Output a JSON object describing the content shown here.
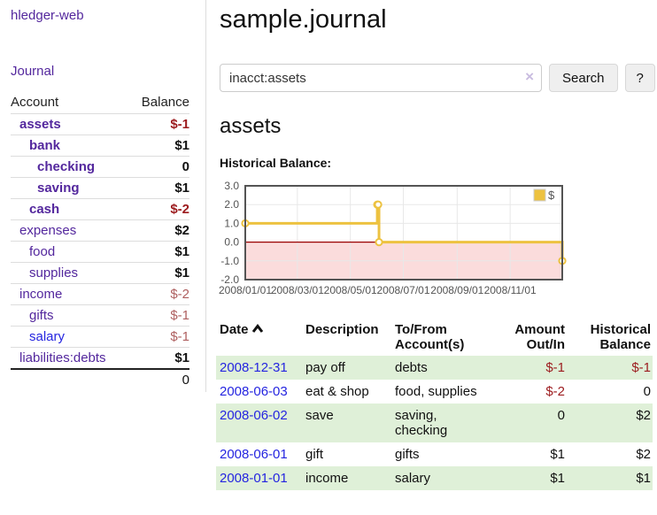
{
  "app": {
    "title": "hledger-web"
  },
  "sidebar": {
    "journal_link": "Journal",
    "accounts": {
      "account_header": "Account",
      "balance_header": "Balance",
      "rows": [
        {
          "account": "assets",
          "balance": "$-1"
        },
        {
          "account": "bank",
          "balance": "$1"
        },
        {
          "account": "checking",
          "balance": "0"
        },
        {
          "account": "saving",
          "balance": "$1"
        },
        {
          "account": "cash",
          "balance": "$-2"
        },
        {
          "account": "expenses",
          "balance": "$2"
        },
        {
          "account": "food",
          "balance": "$1"
        },
        {
          "account": "supplies",
          "balance": "$1"
        },
        {
          "account": "income",
          "balance": "$-2"
        },
        {
          "account": "gifts",
          "balance": "$-1"
        },
        {
          "account": "salary",
          "balance": "$-1"
        },
        {
          "account": "liabilities:debts",
          "balance": "$1"
        }
      ],
      "total": "0"
    }
  },
  "main": {
    "title": "sample.journal",
    "search": {
      "value": "inacct:assets",
      "clear_icon": "×",
      "button_label": "Search",
      "help_label": "?"
    },
    "account_heading": "assets",
    "chart_label": "Historical Balance:"
  },
  "register": {
    "headers": {
      "date": "Date",
      "description": "Description",
      "accounts": "To/From Account(s)",
      "amount": "Amount Out/In",
      "balance": "Historical Balance"
    },
    "rows": [
      {
        "date": "2008-12-31",
        "description": "pay off",
        "accounts": "debts",
        "amount": "$-1",
        "balance": "$-1"
      },
      {
        "date": "2008-06-03",
        "description": "eat & shop",
        "accounts": "food, supplies",
        "amount": "$-2",
        "balance": "0"
      },
      {
        "date": "2008-06-02",
        "description": "save",
        "accounts": "saving, checking",
        "amount": "0",
        "balance": "$2"
      },
      {
        "date": "2008-06-01",
        "description": "gift",
        "accounts": "gifts",
        "amount": "$1",
        "balance": "$2"
      },
      {
        "date": "2008-01-01",
        "description": "income",
        "accounts": "salary",
        "amount": "$1",
        "balance": "$1"
      }
    ]
  },
  "chart_data": {
    "type": "line",
    "steps": true,
    "title": "Historical Balance:",
    "series": [
      {
        "name": "$",
        "color": "#EDC240",
        "points": [
          [
            "2008-01-01",
            1
          ],
          [
            "2008-06-01",
            2
          ],
          [
            "2008-06-02",
            2
          ],
          [
            "2008-06-03",
            0
          ],
          [
            "2008-12-31",
            -1
          ]
        ]
      }
    ],
    "xlim": [
      "2008-01-01",
      "2008-12-31"
    ],
    "ylim": [
      -2,
      3
    ],
    "x_tick_labels": [
      "2008/01/01",
      "2008/03/01",
      "2008/05/01",
      "2008/07/01",
      "2008/09/01",
      "2008/11/01"
    ],
    "y_tick_labels": [
      "3.0",
      "2.0",
      "1.0",
      "0.0",
      "-1.0",
      "-2.0"
    ],
    "grid": true,
    "legend_position": "top-right",
    "negative_region_color": "#FBDCDC",
    "zero_line_color": "#990000",
    "grid_line_color": "#E8E8E8",
    "border_color": "#545454",
    "tick_text_color": "#545454"
  },
  "colors": {
    "purple_link": "#53279D",
    "blue_link": "#2525E0",
    "negative_strong": "#9C1B1E",
    "negative_muted": "#AE5F5F",
    "row_stripe_green": "#DFF0D8",
    "series_gold": "#EDC240"
  }
}
